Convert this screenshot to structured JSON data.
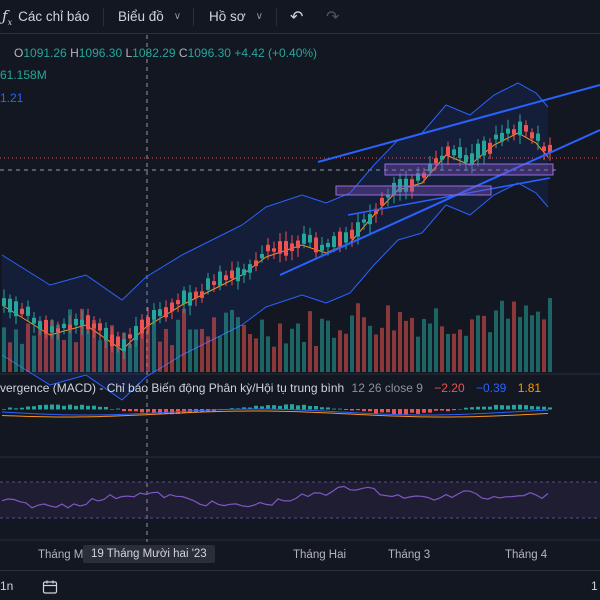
{
  "toolbar": {
    "indicators_label": "Các chỉ báo",
    "chart_type_label": "Biểu đồ",
    "profile_label": "Hồ sơ",
    "undo_icon": "undo-icon",
    "redo_icon": "redo-icon",
    "indicators_icon": "fx-icon"
  },
  "legend": {
    "open_key": "O",
    "open_value": "1091.26",
    "high_key": "H",
    "high_value": "1096.30",
    "low_key": "L",
    "low_value": "1082.29",
    "close_key": "C",
    "close_value": "1096.30",
    "change": "+4.42 (+0.40%)",
    "volume": "61.158M",
    "ma_value": "1.21"
  },
  "macd": {
    "name": "vergence (MACD) - Chỉ báo Biến động Phân kỳ/Hội tụ trung bình",
    "params": "12 26 close 9",
    "histogram": "−2.20",
    "macd_line": "−0.39",
    "signal": "1.81"
  },
  "time_axis": {
    "labels": [
      "Tháng Mười",
      "Tháng Hai",
      "Tháng 3",
      "Tháng 4"
    ],
    "crosshair_label": "19 Tháng Mười hai '23"
  },
  "bottom_bar": {
    "interval": "1n",
    "calendar_icon": "calendar-icon",
    "right_text": "1"
  },
  "colors": {
    "up": "#26a69a",
    "down": "#ef5350",
    "background": "#131722",
    "bollinger": "#2962ff",
    "ma": "#f7931a",
    "rsi": "#7e57c2",
    "trendline": "#2962ff"
  }
}
